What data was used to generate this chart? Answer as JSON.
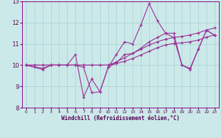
{
  "xlabel": "Windchill (Refroidissement éolien,°C)",
  "bg_color": "#cce9e9",
  "line_color": "#993399",
  "grid_color": "#aad4d4",
  "xlim": [
    -0.5,
    23.5
  ],
  "ylim": [
    8,
    13
  ],
  "yticks": [
    8,
    9,
    10,
    11,
    12,
    13
  ],
  "xticks": [
    0,
    1,
    2,
    3,
    4,
    5,
    6,
    7,
    8,
    9,
    10,
    11,
    12,
    13,
    14,
    15,
    16,
    17,
    18,
    19,
    20,
    21,
    22,
    23
  ],
  "series1_x": [
    0,
    1,
    2,
    3,
    4,
    5,
    6,
    7,
    8,
    9,
    10,
    11,
    12,
    13,
    14,
    15,
    16,
    17,
    18,
    19,
    20,
    21,
    22,
    23
  ],
  "series1_y": [
    10.0,
    9.9,
    9.8,
    10.0,
    10.0,
    10.0,
    10.5,
    8.5,
    9.35,
    8.75,
    9.9,
    10.5,
    11.1,
    11.0,
    11.9,
    12.9,
    12.1,
    11.5,
    11.5,
    10.0,
    9.8,
    10.75,
    11.65,
    11.4
  ],
  "series2_x": [
    0,
    2,
    3,
    4,
    5,
    6,
    7,
    8,
    9,
    10,
    11,
    12,
    13,
    14,
    15,
    16,
    17,
    18,
    19,
    20,
    21,
    22,
    23
  ],
  "series2_y": [
    10.0,
    9.85,
    10.0,
    10.0,
    10.0,
    10.0,
    9.9,
    8.7,
    8.75,
    9.9,
    10.1,
    10.5,
    10.55,
    10.8,
    11.1,
    11.3,
    11.5,
    11.3,
    10.0,
    9.85,
    10.75,
    11.65,
    11.4
  ],
  "series3_x": [
    0,
    1,
    2,
    3,
    4,
    5,
    6,
    7,
    8,
    9,
    10,
    11,
    12,
    13,
    14,
    15,
    16,
    17,
    18,
    19,
    20,
    21,
    22,
    23
  ],
  "series3_y": [
    10.0,
    10.0,
    10.0,
    10.0,
    10.0,
    10.0,
    10.0,
    10.0,
    10.0,
    10.0,
    10.0,
    10.15,
    10.35,
    10.55,
    10.75,
    10.95,
    11.1,
    11.22,
    11.3,
    11.35,
    11.42,
    11.52,
    11.65,
    11.75
  ],
  "series4_x": [
    0,
    1,
    2,
    3,
    4,
    5,
    6,
    7,
    8,
    9,
    10,
    11,
    12,
    13,
    14,
    15,
    16,
    17,
    18,
    19,
    20,
    21,
    22,
    23
  ],
  "series4_y": [
    10.0,
    10.0,
    10.0,
    10.0,
    10.0,
    10.0,
    10.0,
    10.0,
    10.0,
    10.0,
    10.0,
    10.08,
    10.18,
    10.32,
    10.48,
    10.65,
    10.82,
    10.95,
    11.02,
    11.05,
    11.1,
    11.18,
    11.32,
    11.42
  ]
}
